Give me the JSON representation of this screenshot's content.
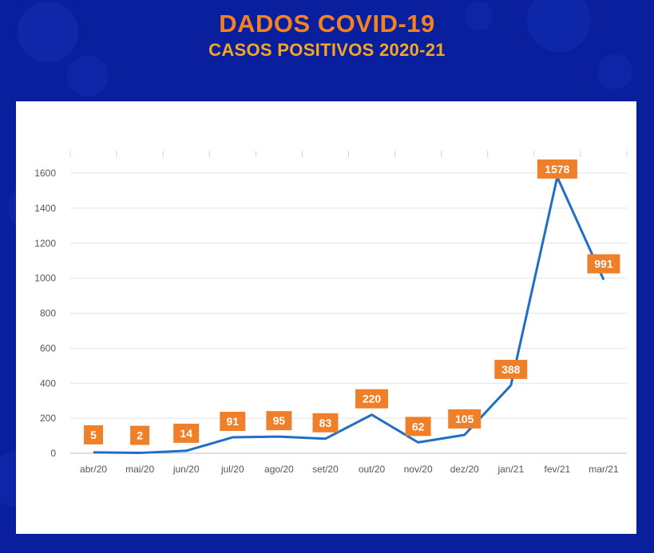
{
  "header": {
    "title": "DADOS COVID-19",
    "subtitle": "CASOS POSITIVOS 2020-21"
  },
  "colors": {
    "background": "#0a1f9e",
    "title": "#f5821f",
    "line": "#1f6fc4",
    "label_box": "#f07f2a"
  },
  "chart_data": {
    "type": "line",
    "title": "CASOS POSITIVOS 2020-21",
    "categories": [
      "abr/20",
      "mai/20",
      "jun/20",
      "jul/20",
      "ago/20",
      "set/20",
      "out/20",
      "nov/20",
      "dez/20",
      "jan/21",
      "fev/21",
      "mar/21"
    ],
    "values": [
      5,
      2,
      14,
      91,
      95,
      83,
      220,
      62,
      105,
      388,
      1578,
      991
    ],
    "ylim": [
      0,
      1600
    ],
    "yticks": [
      0,
      200,
      400,
      600,
      800,
      1000,
      1200,
      1400,
      1600
    ],
    "grid": true,
    "legend": "none",
    "xlabel": "",
    "ylabel": ""
  }
}
